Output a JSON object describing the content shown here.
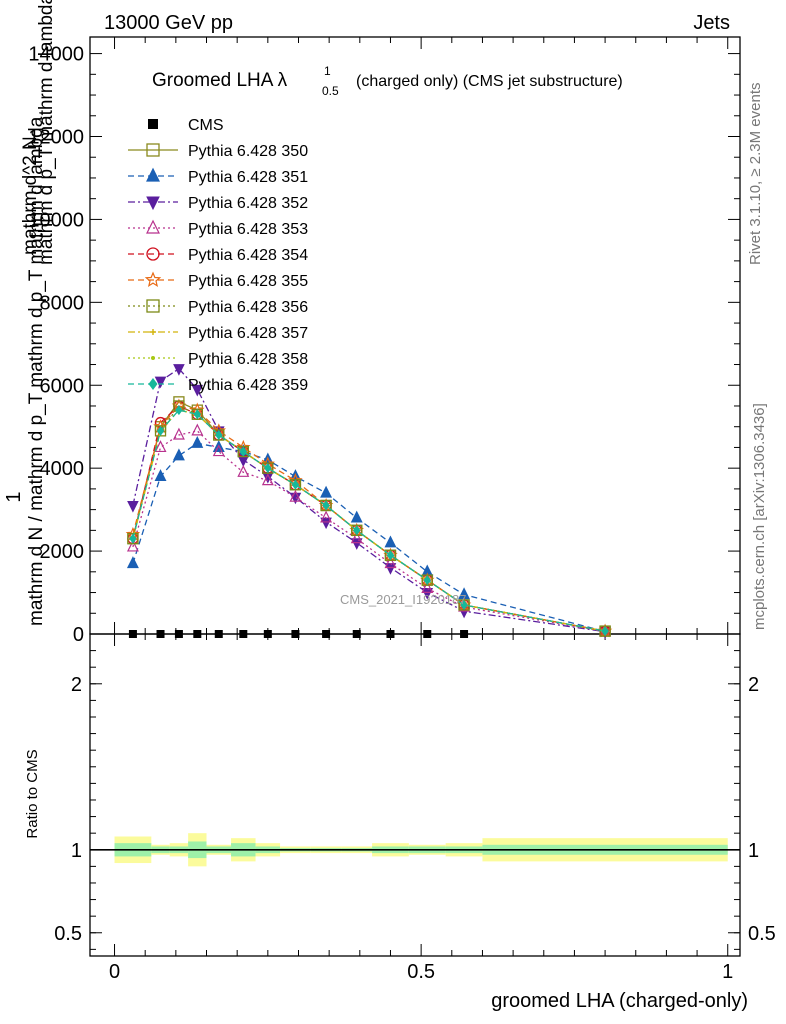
{
  "header": {
    "energy_label": "13000 GeV pp",
    "category_label": "Jets",
    "rivet_label": "Rivet 3.1.10, ≥ 2.3M events",
    "mcplots_label": "mcplots.cern.ch [arXiv:1306.3436]",
    "watermark": "CMS_2021_I1920187"
  },
  "chart_data": {
    "type": "line",
    "title": {
      "prefix": "Groomed LHA ",
      "lambda": "λ",
      "sup": "1",
      "sub": "0.5",
      "suffix": "(charged only) (CMS jet substructure)"
    },
    "xlabel": "groomed LHA (charged-only)",
    "ylabel": {
      "numerator": "1",
      "denominator": "mathrm d N / mathrm d p_T mathrm d p_T mathrm d lambda",
      "upper": "mathrm d^2 N",
      "lower": "mathrm d p_T mathrm d lambda"
    },
    "ratio_ylabel": "Ratio to CMS",
    "xlim": [
      -0.04,
      1.02
    ],
    "ylim": [
      0,
      14400
    ],
    "ratio_ylim": [
      0.36,
      2.3
    ],
    "main_yticks": [
      {
        "v": 0,
        "label": "0"
      },
      {
        "v": 2000,
        "label": "2000"
      },
      {
        "v": 4000,
        "label": "4000"
      },
      {
        "v": 6000,
        "label": "6000"
      },
      {
        "v": 8000,
        "label": "8000"
      },
      {
        "v": 10000,
        "label": "10000"
      },
      {
        "v": 12000,
        "label": "12000"
      },
      {
        "v": 14000,
        "label": "14000"
      }
    ],
    "ratio_yticks": [
      {
        "v": 0.5,
        "label": "0.5"
      },
      {
        "v": 1,
        "label": "1"
      },
      {
        "v": 2,
        "label": "2"
      }
    ],
    "xticks": [
      {
        "v": 0,
        "label": "0"
      },
      {
        "v": 0.5,
        "label": "0.5"
      },
      {
        "v": 1,
        "label": "1"
      }
    ],
    "x": [
      0.03,
      0.075,
      0.105,
      0.135,
      0.17,
      0.21,
      0.25,
      0.295,
      0.345,
      0.395,
      0.45,
      0.51,
      0.57,
      0.8
    ],
    "cms": {
      "name": "CMS",
      "values": [
        0,
        0,
        0,
        0,
        0,
        0,
        0,
        0,
        0,
        0,
        0,
        0,
        0,
        null
      ]
    },
    "series": [
      {
        "name": "Pythia 6.428 350",
        "color": "#8a8a1e",
        "dash": "",
        "marker": "square-open",
        "values": [
          2300,
          5000,
          5600,
          5400,
          4800,
          4400,
          4000,
          3600,
          3100,
          2500,
          1900,
          1300,
          700,
          70
        ]
      },
      {
        "name": "Pythia 6.428 351",
        "color": "#1a5fb4",
        "dash": "6,4",
        "marker": "triangle-up-filled",
        "values": [
          1700,
          3800,
          4300,
          4600,
          4500,
          4400,
          4200,
          3800,
          3400,
          2800,
          2200,
          1500,
          950,
          60
        ]
      },
      {
        "name": "Pythia 6.428 352",
        "color": "#5a1e9e",
        "dash": "7,3,2,3",
        "marker": "triangle-down-filled",
        "values": [
          3100,
          6100,
          6400,
          5900,
          4900,
          4200,
          3800,
          3300,
          2700,
          2200,
          1600,
          1000,
          550,
          55
        ]
      },
      {
        "name": "Pythia 6.428 353",
        "color": "#b8328e",
        "dash": "2,3",
        "marker": "triangle-up-open",
        "values": [
          2100,
          4500,
          4800,
          4900,
          4400,
          3900,
          3700,
          3300,
          2800,
          2300,
          1700,
          1100,
          650,
          60
        ]
      },
      {
        "name": "Pythia 6.428 354",
        "color": "#d0101e",
        "dash": "6,4",
        "marker": "circle-open",
        "values": [
          2300,
          5100,
          5500,
          5300,
          4800,
          4400,
          4000,
          3600,
          3100,
          2500,
          1900,
          1300,
          700,
          70
        ]
      },
      {
        "name": "Pythia 6.428 355",
        "color": "#e86a14",
        "dash": "6,4",
        "marker": "star-open",
        "values": [
          2400,
          5000,
          5500,
          5400,
          4900,
          4500,
          4100,
          3700,
          3100,
          2500,
          1900,
          1300,
          700,
          70
        ]
      },
      {
        "name": "Pythia 6.428 356",
        "color": "#7d8a16",
        "dash": "2,3",
        "marker": "square-open",
        "values": [
          2300,
          4900,
          5500,
          5300,
          4800,
          4400,
          4000,
          3600,
          3100,
          2500,
          1900,
          1300,
          700,
          70
        ]
      },
      {
        "name": "Pythia 6.428 357",
        "color": "#d2b40c",
        "dash": "7,3,2,3",
        "marker": "cross",
        "values": [
          2300,
          4900,
          5400,
          5300,
          4800,
          4400,
          4000,
          3600,
          3100,
          2500,
          1900,
          1300,
          700,
          70
        ]
      },
      {
        "name": "Pythia 6.428 358",
        "color": "#a8c814",
        "dash": "2,3",
        "marker": "dot",
        "values": [
          2300,
          4900,
          5400,
          5300,
          4800,
          4400,
          4000,
          3600,
          3100,
          2500,
          1900,
          1300,
          700,
          70
        ]
      },
      {
        "name": "Pythia 6.428 359",
        "color": "#16b89a",
        "dash": "6,4",
        "marker": "diamond-filled",
        "values": [
          2300,
          4900,
          5400,
          5300,
          4800,
          4400,
          4000,
          3600,
          3100,
          2500,
          1900,
          1300,
          700,
          70
        ]
      }
    ],
    "ratio_band": {
      "edges": [
        0,
        0.06,
        0.09,
        0.12,
        0.15,
        0.19,
        0.23,
        0.27,
        0.32,
        0.37,
        0.42,
        0.48,
        0.54,
        0.6,
        1
      ],
      "inner": [
        0.04,
        0.02,
        0.02,
        0.05,
        0.02,
        0.04,
        0.02,
        0.01,
        0.01,
        0.01,
        0.02,
        0.02,
        0.02,
        0.03
      ],
      "outer": [
        0.08,
        0.03,
        0.04,
        0.1,
        0.03,
        0.07,
        0.04,
        0.02,
        0.02,
        0.02,
        0.04,
        0.03,
        0.04,
        0.07
      ]
    }
  }
}
